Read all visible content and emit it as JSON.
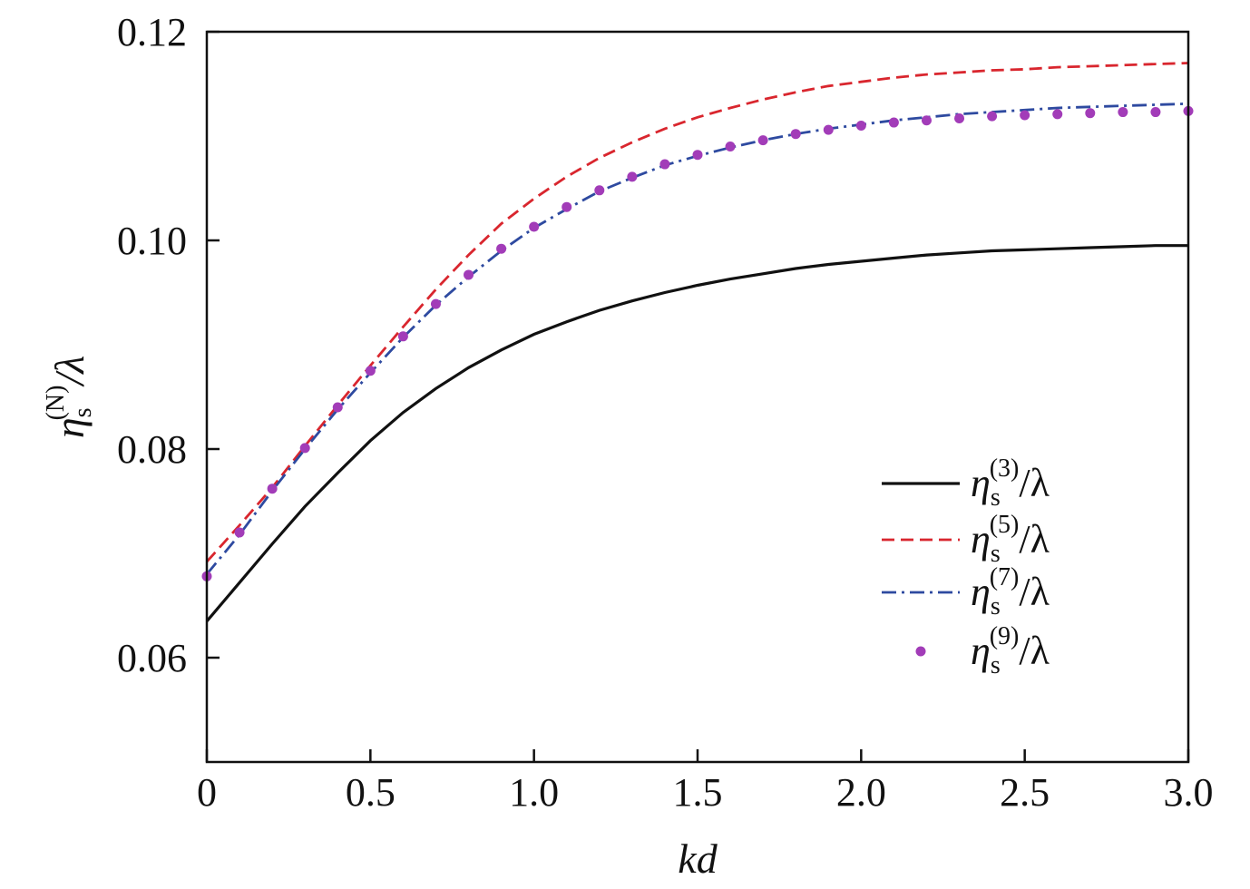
{
  "chart_data": {
    "type": "line",
    "xlabel": "kd",
    "ylabel": {
      "base": "η",
      "sub": "s",
      "sup": "(N)",
      "tail": "/λ"
    },
    "xlim": [
      0,
      3.0
    ],
    "ylim": [
      0.05,
      0.12
    ],
    "xticks": [
      0,
      0.5,
      1.0,
      1.5,
      2.0,
      2.5,
      3.0
    ],
    "xtick_labels": [
      "0",
      "0.5",
      "1.0",
      "1.5",
      "2.0",
      "2.5",
      "3.0"
    ],
    "yticks": [
      0.06,
      0.08,
      0.1,
      0.12
    ],
    "ytick_labels": [
      "0.06",
      "0.08",
      "0.10",
      "0.12"
    ],
    "grid": false,
    "legend_position": "lower-right",
    "x": [
      0,
      0.1,
      0.2,
      0.3,
      0.4,
      0.5,
      0.6,
      0.7,
      0.8,
      0.9,
      1.0,
      1.1,
      1.2,
      1.3,
      1.4,
      1.5,
      1.6,
      1.7,
      1.8,
      1.9,
      2.0,
      2.1,
      2.2,
      2.3,
      2.4,
      2.5,
      2.6,
      2.7,
      2.8,
      2.9,
      3.0
    ],
    "series": [
      {
        "name": "η_s^(3)/λ",
        "legend": {
          "base": "η",
          "sub": "s",
          "sup": "(3)",
          "tail": "/λ"
        },
        "style": "solid",
        "color": "#111111",
        "values": [
          0.0635,
          0.0672,
          0.0709,
          0.0745,
          0.0777,
          0.0808,
          0.0835,
          0.0858,
          0.0878,
          0.0895,
          0.091,
          0.0922,
          0.0933,
          0.0942,
          0.095,
          0.0957,
          0.0963,
          0.0968,
          0.0973,
          0.0977,
          0.098,
          0.0983,
          0.0986,
          0.0988,
          0.099,
          0.0991,
          0.0992,
          0.0993,
          0.0994,
          0.0995,
          0.0995
        ]
      },
      {
        "name": "η_s^(5)/λ",
        "legend": {
          "base": "η",
          "sub": "s",
          "sup": "(5)",
          "tail": "/λ"
        },
        "style": "dashed",
        "color": "#d9262e",
        "values": [
          0.0692,
          0.0727,
          0.0763,
          0.0803,
          0.0842,
          0.088,
          0.0917,
          0.0953,
          0.0986,
          0.1016,
          0.104,
          0.1061,
          0.1079,
          0.1094,
          0.1107,
          0.1118,
          0.1127,
          0.1135,
          0.1142,
          0.1148,
          0.1152,
          0.1156,
          0.1159,
          0.1161,
          0.1163,
          0.1164,
          0.1166,
          0.1167,
          0.1168,
          0.1169,
          0.117
        ]
      },
      {
        "name": "η_s^(7)/λ",
        "legend": {
          "base": "η",
          "sub": "s",
          "sup": "(7)",
          "tail": "/λ"
        },
        "style": "dashdot",
        "color": "#2e4aa0",
        "values": [
          0.068,
          0.0718,
          0.076,
          0.08,
          0.0838,
          0.0873,
          0.0907,
          0.0938,
          0.0965,
          0.099,
          0.1012,
          0.103,
          0.1047,
          0.106,
          0.1072,
          0.1081,
          0.1089,
          0.1096,
          0.1102,
          0.1107,
          0.1111,
          0.1115,
          0.1118,
          0.1121,
          0.1123,
          0.1125,
          0.1127,
          0.1128,
          0.1129,
          0.113,
          0.1131
        ]
      },
      {
        "name": "η_s^(9)/λ",
        "legend": {
          "base": "η",
          "sub": "s",
          "sup": "(9)",
          "tail": "/λ"
        },
        "style": "markers",
        "color": "#a23cb8",
        "values": [
          0.0678,
          0.072,
          0.0762,
          0.0801,
          0.084,
          0.0875,
          0.0908,
          0.0939,
          0.0967,
          0.0992,
          0.1013,
          0.1032,
          0.1048,
          0.1061,
          0.1073,
          0.1082,
          0.109,
          0.1096,
          0.1102,
          0.1106,
          0.111,
          0.1113,
          0.1115,
          0.1117,
          0.1119,
          0.112,
          0.1121,
          0.1122,
          0.1123,
          0.1123,
          0.1124
        ]
      }
    ]
  }
}
